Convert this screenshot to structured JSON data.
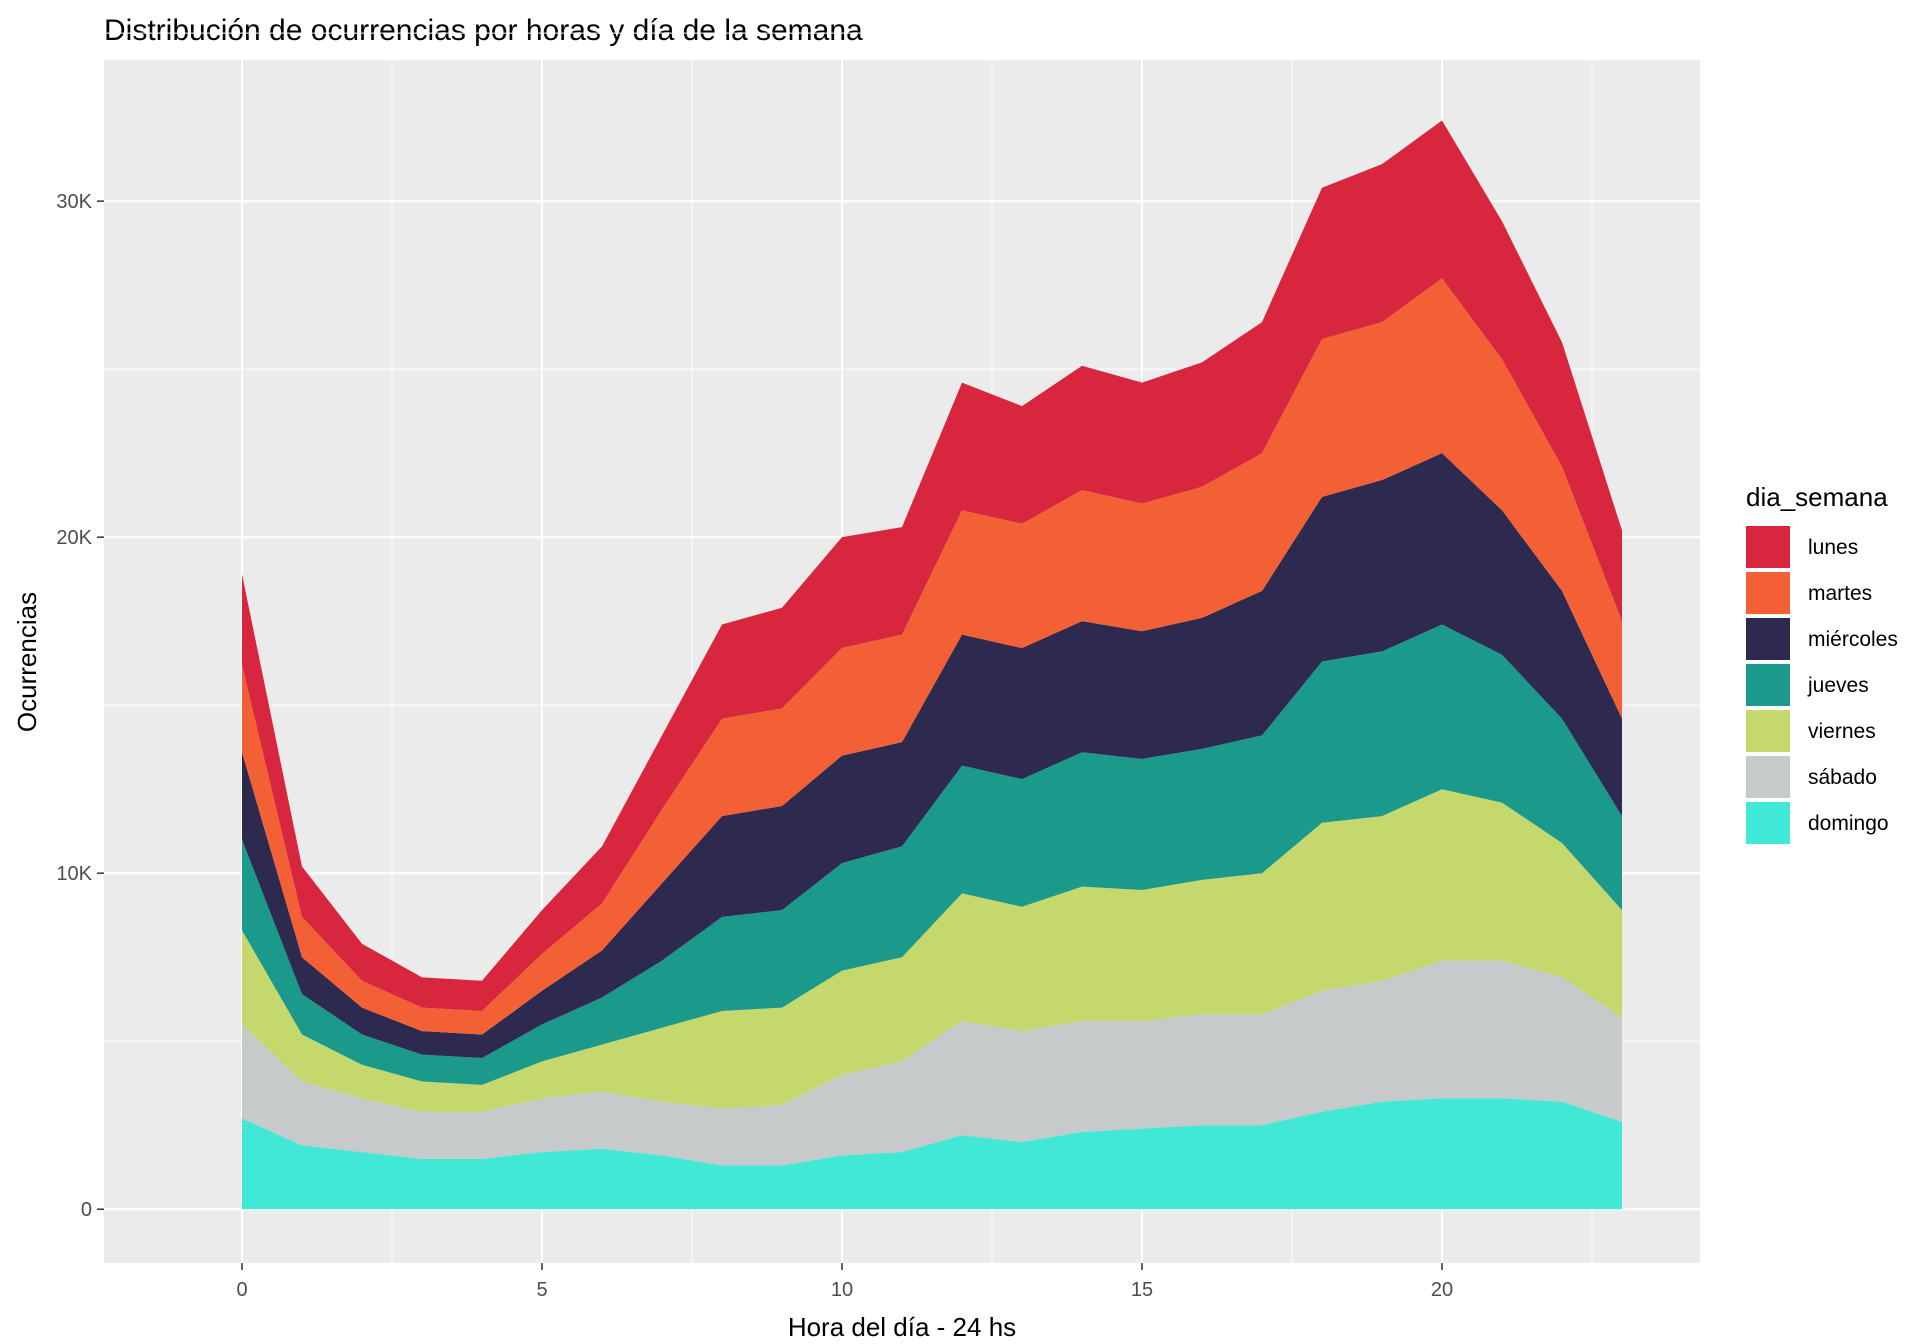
{
  "chart_data": {
    "type": "area",
    "stacked": true,
    "title": "Distribución de ocurrencias por horas y día de la semana",
    "xlabel": "Hora del día - 24 hs",
    "ylabel": "Ocurrencias",
    "x": [
      0,
      1,
      2,
      3,
      4,
      5,
      6,
      7,
      8,
      9,
      10,
      11,
      12,
      13,
      14,
      15,
      16,
      17,
      18,
      19,
      20,
      21,
      22,
      23
    ],
    "xlim": [
      -2.3,
      24.3
    ],
    "ylim": [
      -1600,
      34200
    ],
    "x_ticks": [
      0,
      5,
      10,
      15,
      20
    ],
    "x_tick_labels": [
      "0",
      "5",
      "10",
      "15",
      "20"
    ],
    "y_ticks": [
      0,
      10000,
      20000,
      30000
    ],
    "y_tick_labels": [
      "0",
      "10K",
      "20K",
      "30K"
    ],
    "grid": true,
    "legend_title": "dia_semana",
    "legend_position": "right",
    "series": [
      {
        "name": "lunes",
        "color": "#D7263D",
        "values": [
          2700,
          1500,
          1100,
          900,
          900,
          1300,
          1700,
          2200,
          2800,
          3000,
          3300,
          3200,
          3800,
          3500,
          3700,
          3600,
          3700,
          3900,
          4500,
          4700,
          4700,
          4100,
          3700,
          2700
        ]
      },
      {
        "name": "martes",
        "color": "#F46036",
        "values": [
          2600,
          1200,
          800,
          700,
          700,
          1100,
          1400,
          2200,
          2900,
          2900,
          3200,
          3200,
          3700,
          3700,
          3900,
          3800,
          3900,
          4100,
          4700,
          4700,
          5200,
          4500,
          3700,
          2900
        ]
      },
      {
        "name": "miércoles",
        "color": "#2E294E",
        "values": [
          2600,
          1100,
          800,
          700,
          700,
          1000,
          1400,
          2300,
          3000,
          3100,
          3200,
          3100,
          3900,
          3900,
          3900,
          3800,
          3900,
          4300,
          4900,
          5100,
          5100,
          4300,
          3800,
          2900
        ]
      },
      {
        "name": "jueves",
        "color": "#1B998B",
        "values": [
          2700,
          1200,
          900,
          800,
          800,
          1100,
          1400,
          2000,
          2800,
          2900,
          3200,
          3300,
          3800,
          3800,
          4000,
          3900,
          3900,
          4100,
          4800,
          4900,
          4900,
          4400,
          3700,
          2800
        ]
      },
      {
        "name": "viernes",
        "color": "#C5D86D",
        "values": [
          2800,
          1400,
          1000,
          900,
          800,
          1100,
          1400,
          2200,
          2900,
          2900,
          3100,
          3100,
          3800,
          3700,
          4000,
          3900,
          4000,
          4200,
          5000,
          4900,
          5100,
          4700,
          4000,
          3200
        ]
      },
      {
        "name": "sábado",
        "color": "#C6CACB",
        "values": [
          2800,
          1900,
          1600,
          1400,
          1400,
          1600,
          1700,
          1600,
          1700,
          1800,
          2400,
          2700,
          3400,
          3300,
          3300,
          3200,
          3300,
          3300,
          3600,
          3600,
          4100,
          4100,
          3700,
          3100
        ]
      },
      {
        "name": "domingo",
        "color": "#40E8D5",
        "values": [
          2700,
          1900,
          1700,
          1500,
          1500,
          1700,
          1800,
          1600,
          1300,
          1300,
          1600,
          1700,
          2200,
          2000,
          2300,
          2400,
          2500,
          2500,
          2900,
          3200,
          3300,
          3300,
          3200,
          2600
        ]
      }
    ]
  }
}
